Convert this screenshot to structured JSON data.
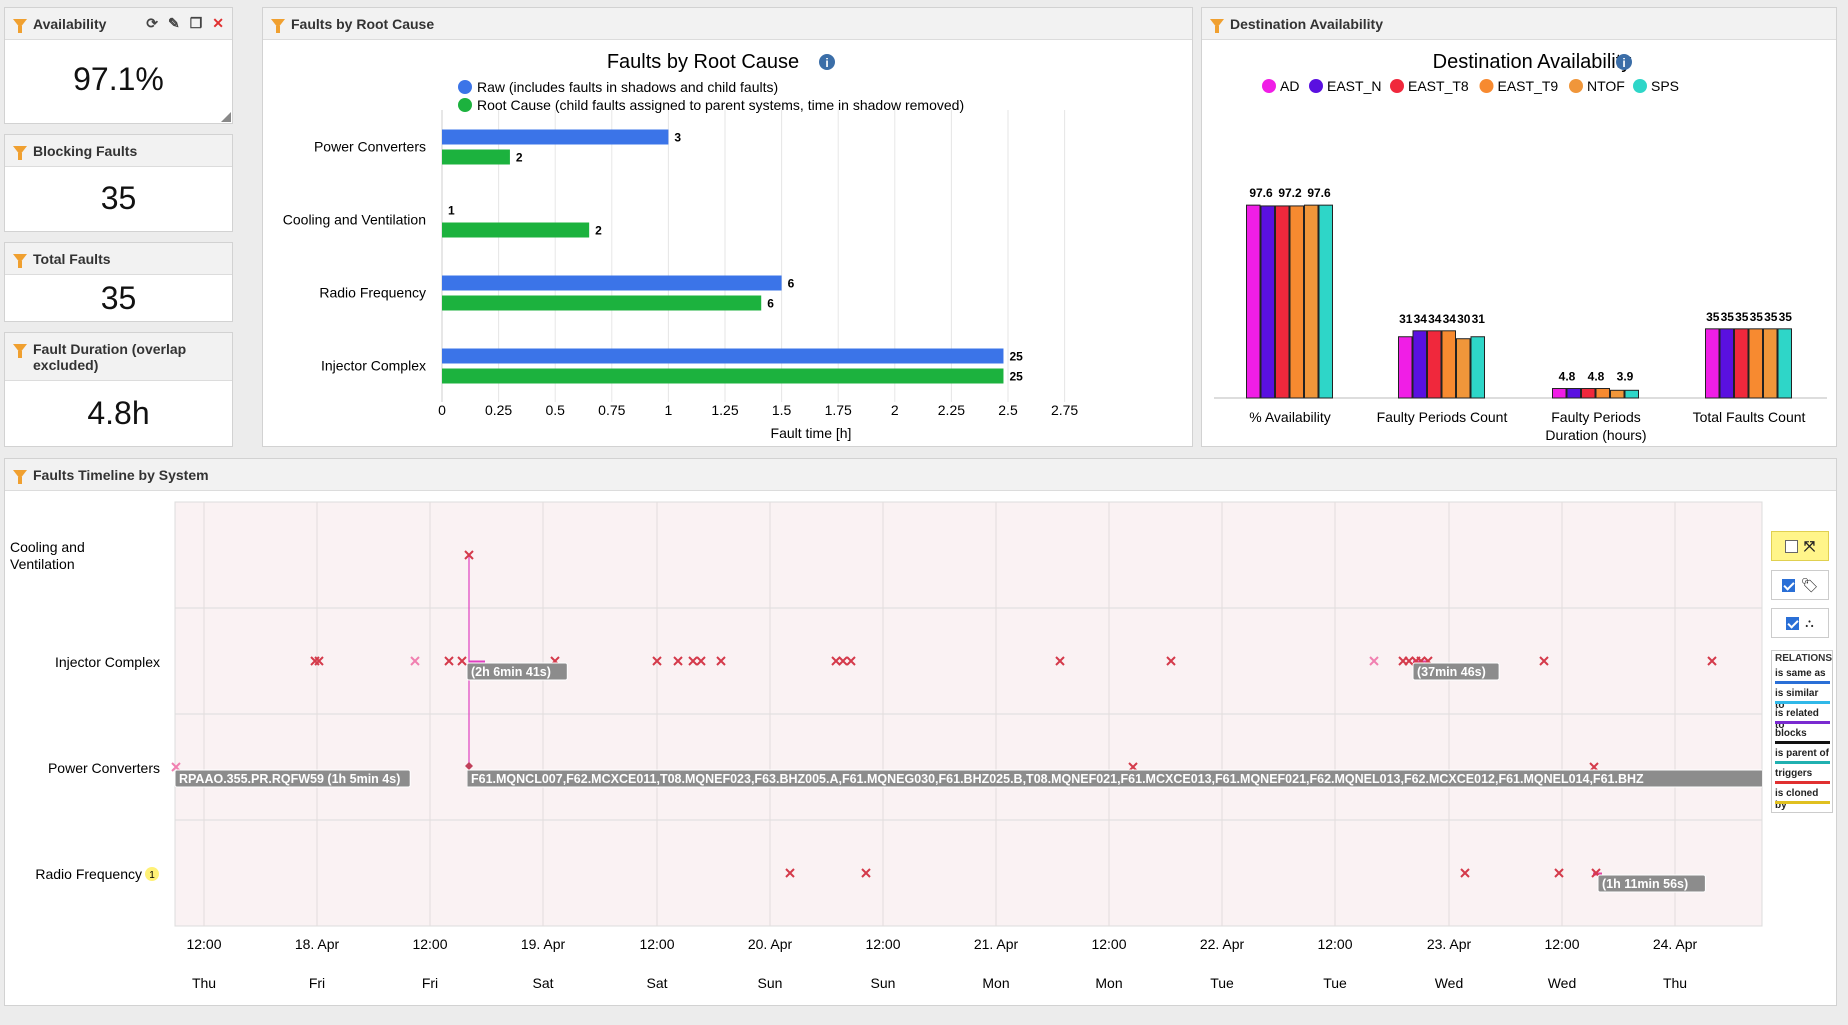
{
  "kpis": {
    "availability": {
      "title": "Availability",
      "value": "97.1%"
    },
    "blocking": {
      "title": "Blocking Faults",
      "value": "35"
    },
    "total": {
      "title": "Total Faults",
      "value": "35"
    },
    "duration": {
      "title": "Fault Duration (overlap excluded)",
      "value": "4.8h"
    }
  },
  "toolbar_icons": [
    "refresh-icon",
    "pencil-icon",
    "copy-icon",
    "close-icon"
  ],
  "faults_panel": {
    "header": "Faults by Root Cause",
    "chart_data": {
      "type": "bar",
      "orientation": "horizontal",
      "title": "Faults by Root Cause",
      "xlabel": "Fault time [h]",
      "xlim": [
        0,
        2.75
      ],
      "xticks": [
        "0",
        "0.25",
        "0.5",
        "0.75",
        "1",
        "1.25",
        "1.5",
        "1.75",
        "2",
        "2.25",
        "2.5",
        "2.75"
      ],
      "categories": [
        "Power Converters",
        "Cooling and Ventilation",
        "Radio Frequency",
        "Injector Complex"
      ],
      "series": [
        {
          "name": "Raw (includes faults in shadows and child faults)",
          "color": "#3b74e8",
          "values": [
            1.0,
            0.0,
            1.5,
            2.48
          ],
          "labels": [
            "3",
            "1",
            "6",
            "25"
          ]
        },
        {
          "name": "Root Cause (child faults assigned to parent systems, time in shadow removed)",
          "color": "#1cb23e",
          "values": [
            0.3,
            0.65,
            1.41,
            2.48
          ],
          "labels": [
            "2",
            "2",
            "6",
            "25"
          ]
        }
      ]
    }
  },
  "dest_panel": {
    "header": "Destination Availability",
    "chart_data": {
      "type": "bar",
      "title": "Destination Availability",
      "categories": [
        "% Availability",
        "Faulty Periods Count",
        "Faulty Periods Duration (hours)",
        "Total Faults Count"
      ],
      "series": [
        {
          "name": "AD",
          "color": "#f01ee6",
          "values": [
            97.6,
            31,
            4.8,
            35
          ]
        },
        {
          "name": "EAST_N",
          "color": "#5a10e0",
          "values": [
            97.2,
            34,
            4.8,
            35
          ]
        },
        {
          "name": "EAST_T8",
          "color": "#f0283c",
          "values": [
            97.2,
            34,
            4.8,
            35
          ]
        },
        {
          "name": "EAST_T9",
          "color": "#f78a30",
          "values": [
            97.2,
            34,
            4.8,
            35
          ]
        },
        {
          "name": "NTOF",
          "color": "#f0963a",
          "values": [
            97.6,
            30,
            3.9,
            35
          ]
        },
        {
          "name": "SPS",
          "color": "#2ed6c8",
          "values": [
            97.6,
            31,
            3.9,
            35
          ]
        }
      ],
      "value_labels": [
        [
          "97.6",
          "97.2",
          "97.6"
        ],
        [
          "31",
          "34",
          "34",
          "34",
          "30",
          "31"
        ],
        [
          "4.8",
          "4.8",
          "3.9"
        ],
        [
          "35",
          "35",
          "35",
          "35",
          "35",
          "35"
        ]
      ]
    }
  },
  "timeline": {
    "header": "Faults Timeline by System",
    "rows": [
      "Cooling and Ventilation",
      "Injector Complex",
      "Power Converters",
      "Radio Frequency"
    ],
    "rf_badge": "1",
    "ticks": [
      {
        "time": "12:00",
        "day": "Thu"
      },
      {
        "time": "18. Apr",
        "day": "Fri"
      },
      {
        "time": "12:00",
        "day": "Fri"
      },
      {
        "time": "19. Apr",
        "day": "Sat"
      },
      {
        "time": "12:00",
        "day": "Sat"
      },
      {
        "time": "20. Apr",
        "day": "Sun"
      },
      {
        "time": "12:00",
        "day": "Sun"
      },
      {
        "time": "21. Apr",
        "day": "Mon"
      },
      {
        "time": "12:00",
        "day": "Mon"
      },
      {
        "time": "22. Apr",
        "day": "Tue"
      },
      {
        "time": "12:00",
        "day": "Tue"
      },
      {
        "time": "23. Apr",
        "day": "Wed"
      },
      {
        "time": "12:00",
        "day": "Wed"
      },
      {
        "time": "24. Apr",
        "day": "Thu"
      }
    ],
    "labels": {
      "inj1": "(2h 6min 41s)",
      "inj2": "(37min 46s)",
      "pc1": "RPAAO.355.PR.RQFW59 (1h 5min 4s)",
      "pc2": "F61.MQNCL007,F62.MCXCE011,T08.MQNEF023,F63.BHZ005.A,F61.MQNEG030,F61.BHZ025.B,T08.MQNEF021,F61.MCXCE013,F61.MQNEF021,F62.MQNEL013,F62.MCXCE012,F61.MQNEL014,F61.BHZ",
      "rf1": "(1h 11min 56s)"
    },
    "relations": {
      "title": "RELATIONS",
      "items": [
        {
          "label": "is same as",
          "color": "#2a6fd6"
        },
        {
          "label": "is similar to",
          "color": "#30b8e8"
        },
        {
          "label": "is related to",
          "color": "#7a2ad0"
        },
        {
          "label": "blocks",
          "color": "#111111"
        },
        {
          "label": "is parent of",
          "color": "#20b0b0"
        },
        {
          "label": "triggers",
          "color": "#e03030"
        },
        {
          "label": "is cloned by",
          "color": "#e0c020"
        }
      ]
    }
  }
}
